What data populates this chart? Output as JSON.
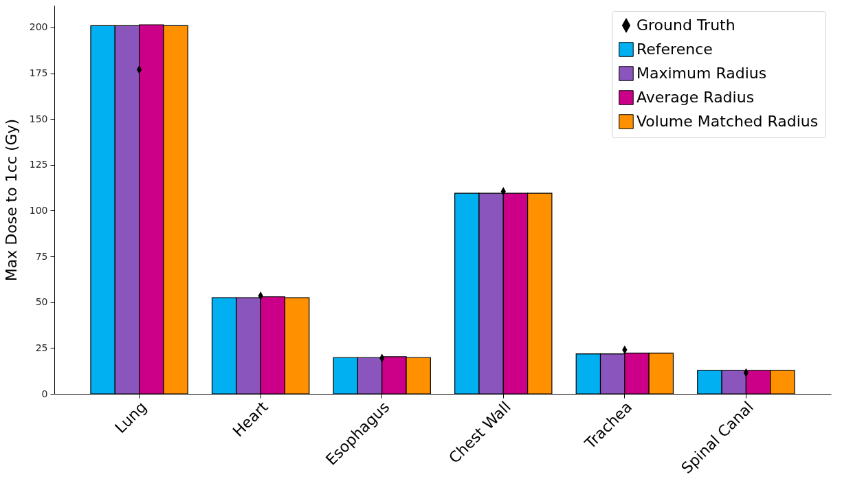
{
  "chart_data": {
    "type": "bar",
    "ylabel": "Max Dose to 1cc (Gy)",
    "categories": [
      "Lung",
      "Heart",
      "Esophagus",
      "Chest Wall",
      "Trachea",
      "Spinal Canal"
    ],
    "ylim": [
      0,
      212
    ],
    "yticks": [
      0,
      25,
      50,
      75,
      100,
      125,
      150,
      175,
      200
    ],
    "legend": "top right",
    "series": [
      {
        "name": "Ground Truth",
        "type": "scatter",
        "marker": "diamond",
        "color": "#000000",
        "values": [
          177,
          53.5,
          19.5,
          110.5,
          24,
          11.5
        ]
      },
      {
        "name": "Reference",
        "color": "#00b0f0",
        "values": [
          201,
          52.5,
          19.8,
          109.5,
          21.8,
          12.8
        ]
      },
      {
        "name": "Maximum Radius",
        "color": "#8a55bd",
        "values": [
          201,
          52.5,
          19.8,
          109.5,
          21.8,
          12.8
        ]
      },
      {
        "name": "Average Radius",
        "color": "#cc0088",
        "values": [
          201.5,
          53,
          20.3,
          109.5,
          22.2,
          12.8
        ]
      },
      {
        "name": "Volume Matched Radius",
        "color": "#ff9100",
        "values": [
          201,
          52.5,
          19.8,
          109.5,
          22.2,
          12.8
        ]
      }
    ]
  }
}
